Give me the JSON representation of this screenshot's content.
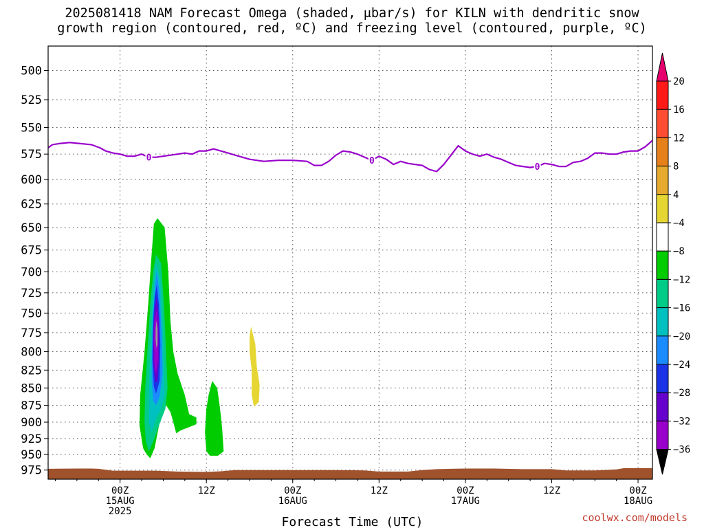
{
  "header": {
    "title_line1": "2025081418 NAM Forecast Omega (shaded, μbar/s) for KILN with dendritic snow",
    "title_line2": "growth region (contoured, red, ºC) and freezing level (contoured, purple, ºC)"
  },
  "footer": {
    "credit": "coolwx.com/models"
  },
  "chart_data": {
    "type": "contour",
    "xlabel": "Forecast Time (UTC)",
    "x_unit": "forecast hours from 2025081418",
    "xlim": [
      -4,
      80
    ],
    "x_ticks": [
      {
        "x": 6,
        "label": [
          "00Z",
          "15AUG",
          "2025"
        ]
      },
      {
        "x": 18,
        "label": [
          "12Z"
        ]
      },
      {
        "x": 30,
        "label": [
          "00Z",
          "16AUG"
        ]
      },
      {
        "x": 42,
        "label": [
          "12Z"
        ]
      },
      {
        "x": 54,
        "label": [
          "00Z",
          "17AUG"
        ]
      },
      {
        "x": 66,
        "label": [
          "12Z"
        ]
      },
      {
        "x": 78,
        "label": [
          "00Z",
          "18AUG"
        ]
      }
    ],
    "y_unit": "hPa",
    "ylim": [
      480,
      990
    ],
    "y_scale": "log",
    "y_ticks": [
      500,
      525,
      550,
      575,
      600,
      625,
      650,
      675,
      700,
      725,
      750,
      775,
      800,
      825,
      850,
      875,
      900,
      925,
      950,
      975
    ],
    "grid": true,
    "colorbar": {
      "levels": [
        -36,
        -32,
        -28,
        -24,
        -20,
        -16,
        -12,
        -8,
        -4,
        4,
        8,
        12,
        16,
        20
      ],
      "labels": [
        "20",
        "16",
        "12",
        "8",
        "4",
        "−4",
        "−8",
        "−12",
        "−16",
        "−20",
        "−24",
        "−28",
        "−32",
        "−36"
      ],
      "colors": [
        "#999999",
        "#9900cc",
        "#6600cc",
        "#1a33e6",
        "#1a8cff",
        "#00c0c0",
        "#00cc88",
        "#00cc00",
        "#ffffff",
        "#e6d633",
        "#e6aa2e",
        "#e6801a",
        "#ff4d33",
        "#ff1a1a",
        "#e6006e"
      ]
    },
    "freezing_level": {
      "color": "#9900cc",
      "contour_label": "0",
      "label_at": [
        10,
        41,
        64
      ],
      "points": [
        [
          -4,
          569
        ],
        [
          -3.4,
          566
        ],
        [
          -2.5,
          565
        ],
        [
          -1,
          564
        ],
        [
          0.5,
          565
        ],
        [
          2,
          566
        ],
        [
          3.2,
          569
        ],
        [
          4,
          572
        ],
        [
          5,
          574
        ],
        [
          6,
          575
        ],
        [
          7,
          577
        ],
        [
          8,
          577
        ],
        [
          9,
          575
        ],
        [
          10,
          578
        ],
        [
          11,
          578
        ],
        [
          12,
          577
        ],
        [
          13,
          576
        ],
        [
          14,
          575
        ],
        [
          15,
          574
        ],
        [
          16,
          575
        ],
        [
          17,
          572
        ],
        [
          18,
          572
        ],
        [
          19,
          570
        ],
        [
          20,
          572
        ],
        [
          21,
          574
        ],
        [
          22,
          576
        ],
        [
          24,
          580
        ],
        [
          26,
          582
        ],
        [
          28,
          581
        ],
        [
          30,
          581
        ],
        [
          32,
          582
        ],
        [
          33,
          586
        ],
        [
          34,
          586
        ],
        [
          35,
          582
        ],
        [
          36,
          576
        ],
        [
          37,
          572
        ],
        [
          38,
          573
        ],
        [
          39,
          575
        ],
        [
          40,
          578
        ],
        [
          41,
          581
        ],
        [
          42,
          577
        ],
        [
          43,
          580
        ],
        [
          44,
          585
        ],
        [
          45,
          582
        ],
        [
          46,
          584
        ],
        [
          47,
          585
        ],
        [
          48,
          586
        ],
        [
          49,
          590
        ],
        [
          50,
          592
        ],
        [
          51,
          585
        ],
        [
          52,
          576
        ],
        [
          53,
          567
        ],
        [
          54,
          572
        ],
        [
          55,
          575
        ],
        [
          56,
          577
        ],
        [
          57,
          575
        ],
        [
          58,
          578
        ],
        [
          59,
          580
        ],
        [
          60,
          583
        ],
        [
          61,
          586
        ],
        [
          62,
          587
        ],
        [
          63,
          588
        ],
        [
          64,
          587
        ],
        [
          65,
          584
        ],
        [
          66,
          585
        ],
        [
          67,
          587
        ],
        [
          68,
          587
        ],
        [
          69,
          583
        ],
        [
          70,
          582
        ],
        [
          71,
          579
        ],
        [
          72,
          574
        ],
        [
          73,
          574
        ],
        [
          74,
          575
        ],
        [
          75,
          575
        ],
        [
          76,
          573
        ],
        [
          77,
          572
        ],
        [
          78,
          572
        ],
        [
          79,
          568
        ],
        [
          80,
          562
        ]
      ]
    },
    "omega_regions": [
      {
        "level": -8,
        "color": "#00cc00",
        "points": [
          [
            10.7,
            646
          ],
          [
            11.2,
            640
          ],
          [
            12.2,
            650
          ],
          [
            12.7,
            700
          ],
          [
            13.0,
            760
          ],
          [
            13.4,
            800
          ],
          [
            14.0,
            830
          ],
          [
            15.0,
            860
          ],
          [
            15.6,
            888
          ],
          [
            16.6,
            893
          ],
          [
            16.6,
            903
          ],
          [
            15.5,
            908
          ],
          [
            14.5,
            912
          ],
          [
            13.8,
            917
          ],
          [
            13.4,
            900
          ],
          [
            13.0,
            885
          ],
          [
            12.4,
            875
          ],
          [
            11.5,
            900
          ],
          [
            10.8,
            940
          ],
          [
            10.2,
            956
          ],
          [
            9.7,
            950
          ],
          [
            9.2,
            940
          ],
          [
            8.7,
            905
          ],
          [
            8.8,
            860
          ],
          [
            9.4,
            800
          ],
          [
            9.9,
            740
          ],
          [
            10.3,
            690
          ]
        ]
      },
      {
        "level": -8,
        "color": "#00cc00",
        "points": [
          [
            18.8,
            840
          ],
          [
            19.5,
            850
          ],
          [
            19.9,
            880
          ],
          [
            20.2,
            910
          ],
          [
            20.4,
            945
          ],
          [
            19.6,
            952
          ],
          [
            18.5,
            952
          ],
          [
            18.0,
            945
          ],
          [
            17.8,
            915
          ],
          [
            18.0,
            880
          ],
          [
            18.3,
            860
          ]
        ]
      },
      {
        "level": -12,
        "color": "#00cc88",
        "points": [
          [
            11.0,
            680
          ],
          [
            11.7,
            690
          ],
          [
            12.1,
            740
          ],
          [
            12.4,
            800
          ],
          [
            12.6,
            850
          ],
          [
            12.3,
            880
          ],
          [
            11.4,
            905
          ],
          [
            10.6,
            930
          ],
          [
            10.0,
            945
          ],
          [
            9.6,
            930
          ],
          [
            9.4,
            900
          ],
          [
            9.5,
            850
          ],
          [
            9.8,
            800
          ],
          [
            10.2,
            740
          ],
          [
            10.6,
            700
          ]
        ]
      },
      {
        "level": -16,
        "color": "#00c0c0",
        "points": [
          [
            11.0,
            690
          ],
          [
            11.6,
            710
          ],
          [
            11.9,
            760
          ],
          [
            12.1,
            820
          ],
          [
            12.2,
            860
          ],
          [
            11.7,
            880
          ],
          [
            11.0,
            895
          ],
          [
            10.4,
            915
          ],
          [
            10.0,
            900
          ],
          [
            10.0,
            860
          ],
          [
            10.2,
            800
          ],
          [
            10.5,
            740
          ],
          [
            10.8,
            705
          ]
        ]
      },
      {
        "level": -20,
        "color": "#1a8cff",
        "points": [
          [
            11.1,
            700
          ],
          [
            11.5,
            725
          ],
          [
            11.8,
            780
          ],
          [
            11.9,
            830
          ],
          [
            11.5,
            862
          ],
          [
            11.0,
            875
          ],
          [
            10.6,
            868
          ],
          [
            10.4,
            840
          ],
          [
            10.4,
            800
          ],
          [
            10.6,
            750
          ],
          [
            10.9,
            715
          ]
        ]
      },
      {
        "level": -24,
        "color": "#1a33e6",
        "points": [
          [
            11.1,
            715
          ],
          [
            11.4,
            740
          ],
          [
            11.6,
            790
          ],
          [
            11.5,
            840
          ],
          [
            11.0,
            858
          ],
          [
            10.7,
            848
          ],
          [
            10.5,
            810
          ],
          [
            10.6,
            760
          ],
          [
            10.8,
            730
          ]
        ]
      },
      {
        "level": -28,
        "color": "#6600cc",
        "points": [
          [
            11.1,
            730
          ],
          [
            11.4,
            760
          ],
          [
            11.4,
            810
          ],
          [
            11.2,
            840
          ],
          [
            10.9,
            842
          ],
          [
            10.6,
            815
          ],
          [
            10.6,
            775
          ],
          [
            10.8,
            745
          ]
        ]
      },
      {
        "level": -32,
        "color": "#9900cc",
        "points": [
          [
            11.1,
            745
          ],
          [
            11.3,
            775
          ],
          [
            11.3,
            810
          ],
          [
            11.0,
            830
          ],
          [
            10.8,
            820
          ],
          [
            10.7,
            785
          ],
          [
            10.8,
            760
          ]
        ]
      },
      {
        "level": -36,
        "color": "#999999",
        "points": [
          [
            11.05,
            760
          ],
          [
            11.2,
            770
          ],
          [
            11.2,
            790
          ],
          [
            11.05,
            795
          ],
          [
            10.95,
            785
          ],
          [
            10.95,
            770
          ]
        ]
      },
      {
        "level": 4,
        "color": "#e6d633",
        "points": [
          [
            24.2,
            767
          ],
          [
            24.8,
            790
          ],
          [
            25.0,
            820
          ],
          [
            25.4,
            845
          ],
          [
            25.3,
            870
          ],
          [
            24.6,
            877
          ],
          [
            24.3,
            860
          ],
          [
            24.3,
            825
          ],
          [
            24.0,
            800
          ],
          [
            24.0,
            780
          ]
        ]
      }
    ],
    "terrain": {
      "color": "#a0522d",
      "surface_points": [
        [
          -4,
          973
        ],
        [
          0,
          972.5
        ],
        [
          2,
          972.5
        ],
        [
          3,
          973
        ],
        [
          5,
          976
        ],
        [
          8,
          976
        ],
        [
          11,
          976
        ],
        [
          14,
          977.5
        ],
        [
          18,
          978
        ],
        [
          20,
          977
        ],
        [
          22,
          975
        ],
        [
          30,
          975
        ],
        [
          36,
          975
        ],
        [
          40,
          975.5
        ],
        [
          42,
          977.5
        ],
        [
          46,
          977.5
        ],
        [
          48,
          975
        ],
        [
          50,
          973.5
        ],
        [
          52,
          973
        ],
        [
          54,
          972.5
        ],
        [
          58,
          972.5
        ],
        [
          62,
          973.5
        ],
        [
          66,
          973.5
        ],
        [
          68,
          975.5
        ],
        [
          72,
          975.5
        ],
        [
          75,
          974
        ],
        [
          76,
          972
        ],
        [
          78,
          972
        ],
        [
          80,
          972
        ]
      ]
    }
  }
}
